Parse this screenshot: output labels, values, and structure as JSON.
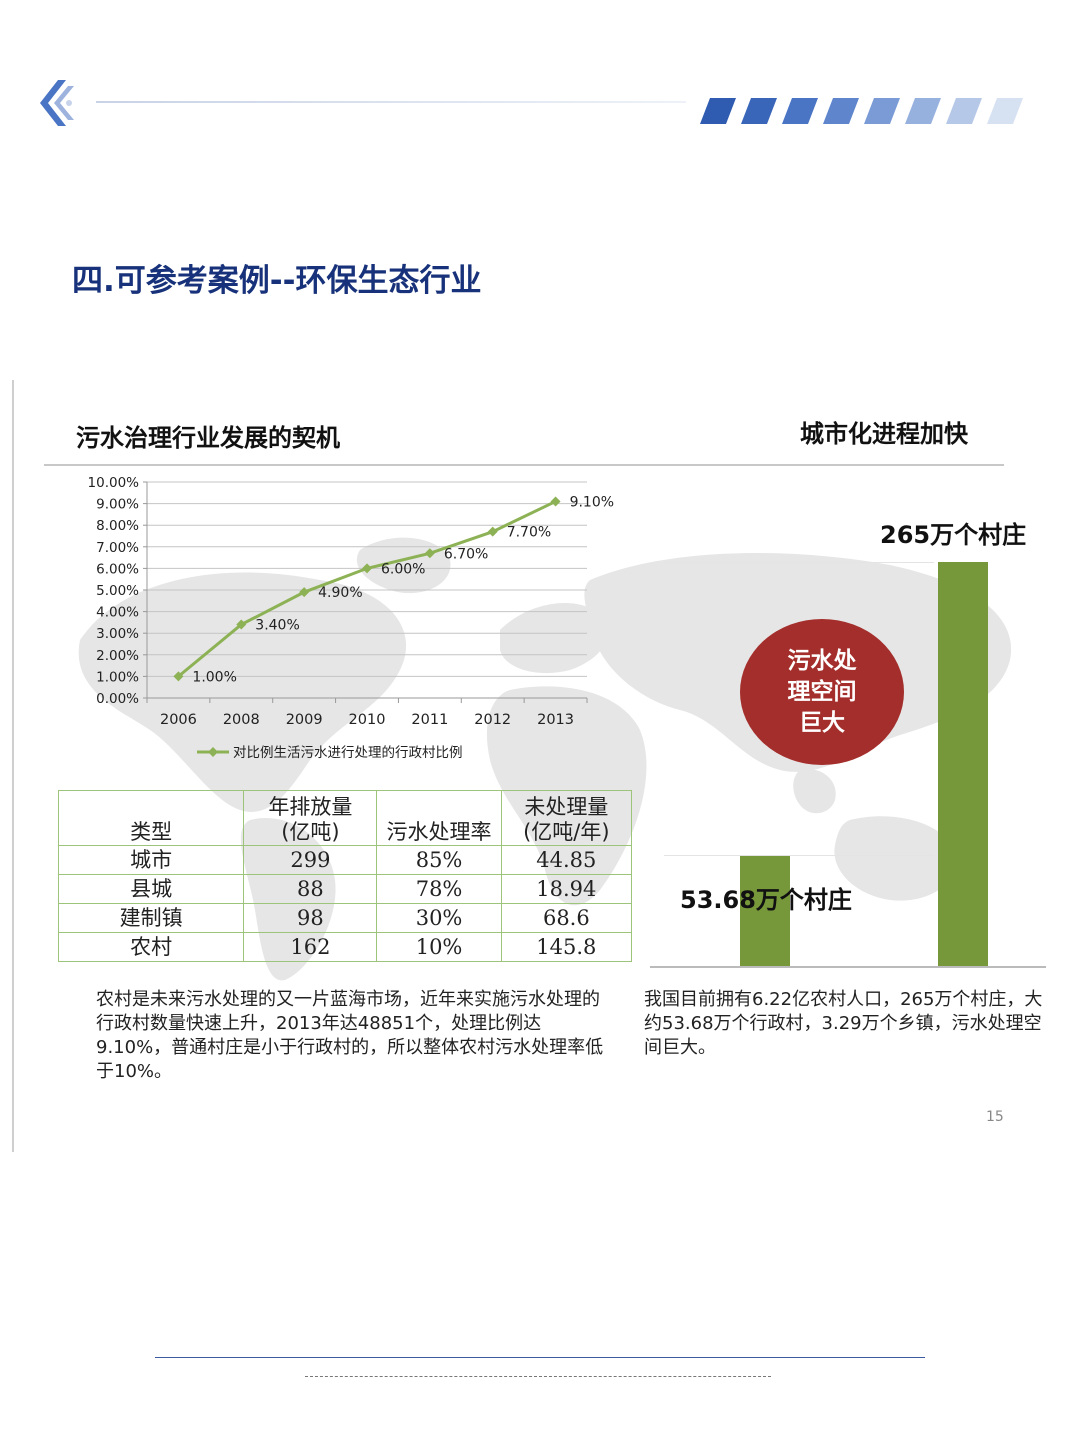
{
  "page": {
    "title": "四.可参考案例--环保生态行业",
    "page_number": "15",
    "colors": {
      "title": "#17327a",
      "accent_blue": "#2f5bb0",
      "bar_green": "#77983a",
      "bubble_red": "#a42e2b",
      "line_green": "#8db255",
      "table_border": "#9cc47a"
    }
  },
  "left_section": {
    "title": "污水治理行业发展的契机"
  },
  "right_section": {
    "title": "城市化进程加快"
  },
  "chart_data": [
    {
      "type": "line",
      "x": [
        "2006",
        "2008",
        "2009",
        "2010",
        "2011",
        "2012",
        "2013"
      ],
      "series": [
        {
          "name": "对比例生活污水进行处理的行政村比例",
          "values": [
            1.0,
            3.4,
            4.9,
            6.0,
            6.7,
            7.7,
            9.1
          ],
          "color": "#8db255"
        }
      ],
      "data_labels": [
        "1.00%",
        "3.40%",
        "4.90%",
        "6.00%",
        "6.70%",
        "7.70%",
        "9.10%"
      ],
      "y_ticks": [
        "0.00%",
        "1.00%",
        "2.00%",
        "3.00%",
        "4.00%",
        "5.00%",
        "6.00%",
        "7.00%",
        "8.00%",
        "9.00%",
        "10.00%"
      ],
      "ylim": [
        0,
        10
      ],
      "grid": true,
      "legend": "bottom"
    },
    {
      "type": "bar",
      "categories": [
        "53.68万个村庄",
        "265万个村庄"
      ],
      "values": [
        53.68,
        265
      ],
      "color": "#77983a"
    }
  ],
  "table": {
    "headers": [
      {
        "line1": "",
        "line2": "类型"
      },
      {
        "line1": "年排放量",
        "line2": "(亿吨)"
      },
      {
        "line1": "",
        "line2": "污水处理率"
      },
      {
        "line1": "未处理量",
        "line2": "(亿吨/年)"
      }
    ],
    "rows": [
      [
        "城市",
        "299",
        "85%",
        "44.85"
      ],
      [
        "县城",
        "88",
        "78%",
        "18.94"
      ],
      [
        "建制镇",
        "98",
        "30%",
        "68.6"
      ],
      [
        "农村",
        "162",
        "10%",
        "145.8"
      ]
    ]
  },
  "bars": {
    "small_label": "53.68万个村庄",
    "large_label": "265万个村庄"
  },
  "bubble": {
    "text": "污水处理空间巨大"
  },
  "paragraphs": {
    "left": "农村是未来污水处理的又一片蓝海市场，近年来实施污水处理的行政村数量快速上升，2013年达48851个，处理比例达9.10%，普通村庄是小于行政村的，所以整体农村污水处理率低于10%。",
    "right": "我国目前拥有6.22亿农村人口，265万个村庄，大约53.68万个行政村，3.29万个乡镇，污水处理空间巨大。"
  }
}
